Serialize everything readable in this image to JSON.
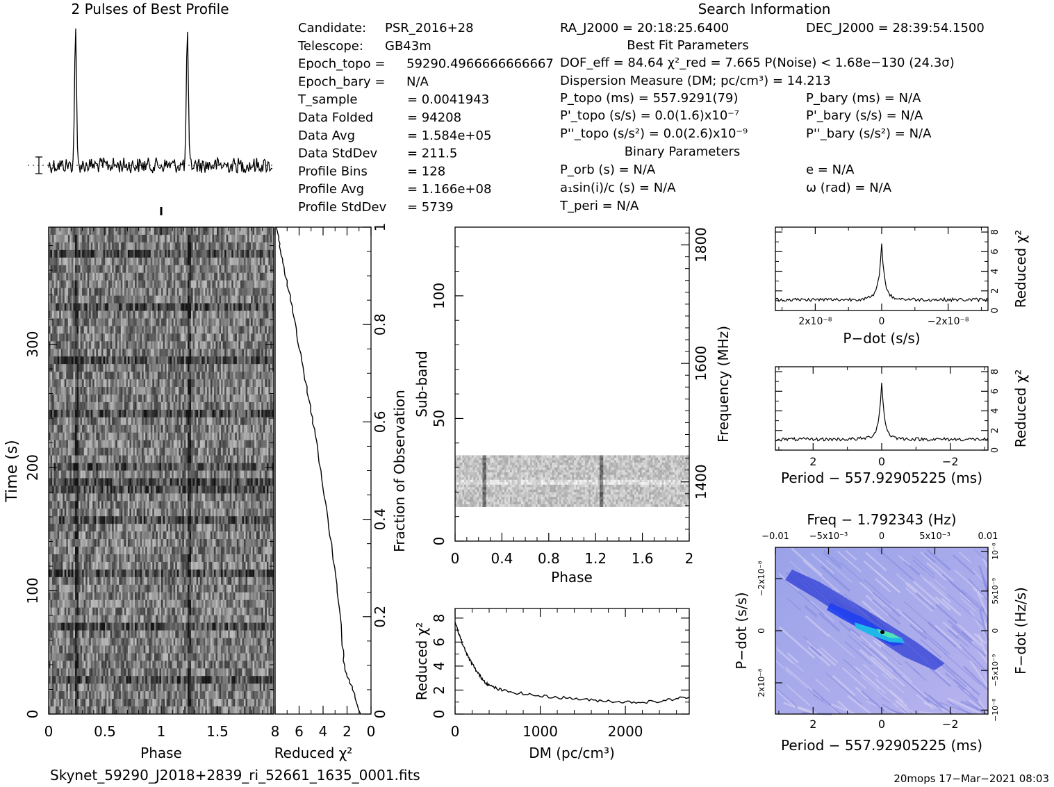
{
  "header": {
    "profile_title": "2 Pulses of Best Profile",
    "search_title": "Search Information"
  },
  "info_left": [
    [
      "Candidate:",
      "PSR_2016+28"
    ],
    [
      "Telescope:",
      "GB43m"
    ],
    [
      "Epoch_topo =",
      "59290.4966666666667"
    ],
    [
      "Epoch_bary =",
      "N/A"
    ],
    [
      "T_sample",
      "= 0.0041943"
    ],
    [
      "Data Folded",
      "= 94208"
    ],
    [
      "Data Avg",
      "= 1.584e+05"
    ],
    [
      "Data StdDev",
      "= 211.5"
    ],
    [
      "Profile Bins",
      "= 128"
    ],
    [
      "Profile Avg",
      "= 1.166e+08"
    ],
    [
      "Profile StdDev",
      "= 5739"
    ]
  ],
  "info_mid": {
    "ra": "RA_J2000 = 20:18:25.6400",
    "best_fit_title": "Best Fit Parameters",
    "dof": "DOF_eff = 84.64  χ²_red = 7.665  P(Noise) < 1.68e−130  (24.3σ)",
    "dm": "Dispersion Measure (DM; pc/cm³) = 14.213",
    "ptopo": "P_topo (ms) =  557.9291(79)",
    "pdtopo": "P'_topo (s/s) = 0.0(1.6)x10⁻⁷",
    "pddtopo": "P''_topo (s/s²) = 0.0(2.6)x10⁻⁹",
    "binary_title": "Binary Parameters",
    "porb": "P_orb (s) = N/A",
    "a1": "a₁sin(i)/c (s) = N/A",
    "tperi": "T_peri = N/A"
  },
  "info_right": {
    "dec": "DEC_J2000 = 28:39:54.1500",
    "pbary": "P_bary (ms) = N/A",
    "pdbary": "P'_bary (s/s) = N/A",
    "pddbary": "P''_bary (s/s²) = N/A",
    "e": "e = N/A",
    "omega": "ω (rad) = N/A"
  },
  "footer": {
    "filename": "Skynet_59290_J2018+2839_ri_52661_1635_0001.fits",
    "stamp": "20mops 17−Mar−2021 08:03"
  },
  "chart_data": [
    {
      "id": "profile",
      "type": "line",
      "title": "2 Pulses of Best Profile",
      "x": "phase 0–2",
      "peaks_phase": [
        0.24,
        1.24
      ],
      "peak_height_rel": 1.0,
      "baseline_rel": 0.16
    },
    {
      "id": "time-phase",
      "type": "heatmap",
      "xlabel": "Phase",
      "ylabel": "Time (s)",
      "xlim": [
        0,
        2
      ],
      "ylim": [
        0,
        395
      ],
      "xticks": [
        "0",
        "0.5",
        "1",
        "1.5"
      ],
      "yticks": [
        "0",
        "100",
        "200",
        "300"
      ],
      "pulse_phase": [
        0.24,
        1.24
      ]
    },
    {
      "id": "chi2-vs-fraction",
      "type": "line",
      "xlabel": "Reduced χ²",
      "ylabel": "Fraction of Observation",
      "xlim": [
        8,
        0
      ],
      "ylim": [
        0,
        1
      ],
      "xticks": [
        "8",
        "6",
        "4",
        "2",
        "0"
      ],
      "yticks": [
        "0",
        "0.2",
        "0.4",
        "0.6",
        "0.8",
        "1"
      ],
      "points": [
        [
          0.9,
          0.0
        ],
        [
          1.5,
          0.05
        ],
        [
          2.2,
          0.09
        ],
        [
          2.4,
          0.15
        ],
        [
          2.8,
          0.25
        ],
        [
          3.3,
          0.35
        ],
        [
          3.9,
          0.45
        ],
        [
          4.5,
          0.55
        ],
        [
          5.0,
          0.62
        ],
        [
          5.6,
          0.7
        ],
        [
          6.2,
          0.78
        ],
        [
          6.7,
          0.85
        ],
        [
          7.2,
          0.91
        ],
        [
          7.6,
          0.96
        ],
        [
          7.9,
          1.0
        ]
      ]
    },
    {
      "id": "subband-phase",
      "type": "heatmap",
      "xlabel": "Phase",
      "ylabel": "Sub-band",
      "y2label": "Frequency (MHz)",
      "xlim": [
        0,
        2
      ],
      "ylim": [
        0,
        128
      ],
      "xticks": [
        "0",
        "0.4",
        "0.8",
        "1.2",
        "1.6",
        "2"
      ],
      "yticks": [
        "0",
        "50",
        "100"
      ],
      "y2ticks": [
        "1400",
        "1600",
        "1800"
      ],
      "filled_subbands": [
        14,
        35
      ],
      "pulse_phase": [
        0.24,
        1.24
      ]
    },
    {
      "id": "dm-curve",
      "type": "line",
      "xlabel": "DM (pc/cm³)",
      "ylabel": "Reduced χ²",
      "xlim": [
        0,
        2750
      ],
      "ylim": [
        0,
        8.8
      ],
      "xticks": [
        "0",
        "1000",
        "2000"
      ],
      "yticks": [
        "0",
        "2",
        "4",
        "6",
        "8"
      ],
      "points": [
        [
          0,
          7.7
        ],
        [
          50,
          6.6
        ],
        [
          100,
          5.6
        ],
        [
          150,
          4.8
        ],
        [
          200,
          4.2
        ],
        [
          250,
          3.6
        ],
        [
          300,
          3.1
        ],
        [
          350,
          2.7
        ],
        [
          400,
          2.4
        ],
        [
          500,
          2.1
        ],
        [
          600,
          1.9
        ],
        [
          800,
          1.7
        ],
        [
          1000,
          1.5
        ],
        [
          1200,
          1.4
        ],
        [
          1400,
          1.3
        ],
        [
          1600,
          1.15
        ],
        [
          1800,
          1.1
        ],
        [
          2000,
          1.0
        ],
        [
          2200,
          1.0
        ],
        [
          2400,
          1.05
        ],
        [
          2600,
          1.3
        ],
        [
          2750,
          1.4
        ]
      ]
    },
    {
      "id": "pdot-curve",
      "type": "line",
      "xlabel": "P−dot (s/s)",
      "ylabel": "Reduced χ²",
      "xlim": [
        3.2e-08,
        -3.2e-08
      ],
      "ylim": [
        0,
        8.5
      ],
      "xticks": [
        "2x10⁻⁸",
        "0",
        "−2x10⁻⁸"
      ],
      "yticks": [
        "0",
        "2",
        "4",
        "6",
        "8"
      ],
      "peak_value": 7.7,
      "baseline": 1.1
    },
    {
      "id": "period-curve",
      "type": "line",
      "xlabel": "Period − 557.92905225 (ms)",
      "ylabel": "Reduced χ²",
      "xlim": [
        3.1,
        -3.1
      ],
      "ylim": [
        0,
        8.5
      ],
      "xticks": [
        "2",
        "0",
        "−2"
      ],
      "yticks": [
        "0",
        "2",
        "4",
        "6",
        "8"
      ],
      "peak_value": 7.7,
      "baseline": 1.1
    },
    {
      "id": "p-pdot-plane",
      "type": "heatmap",
      "title": "Freq − 1.792343 (Hz)",
      "xlabel": "Period − 557.92905225 (ms)",
      "ylabel": "P−dot (s/s)",
      "y2label": "F−dot (Hz/s)",
      "xticks": [
        "2",
        "0",
        "−2"
      ],
      "x2ticks": [
        "−0.01",
        "−5x10⁻³",
        "0",
        "5x10⁻³",
        "0.01"
      ],
      "yticks": [
        "−2x10⁻⁸",
        "0",
        "2x10⁻⁸"
      ],
      "y2ticks": [
        "10⁻⁸",
        "5x10⁻⁹",
        "0",
        "−5x10⁻⁹",
        "−10⁻⁸"
      ]
    }
  ]
}
